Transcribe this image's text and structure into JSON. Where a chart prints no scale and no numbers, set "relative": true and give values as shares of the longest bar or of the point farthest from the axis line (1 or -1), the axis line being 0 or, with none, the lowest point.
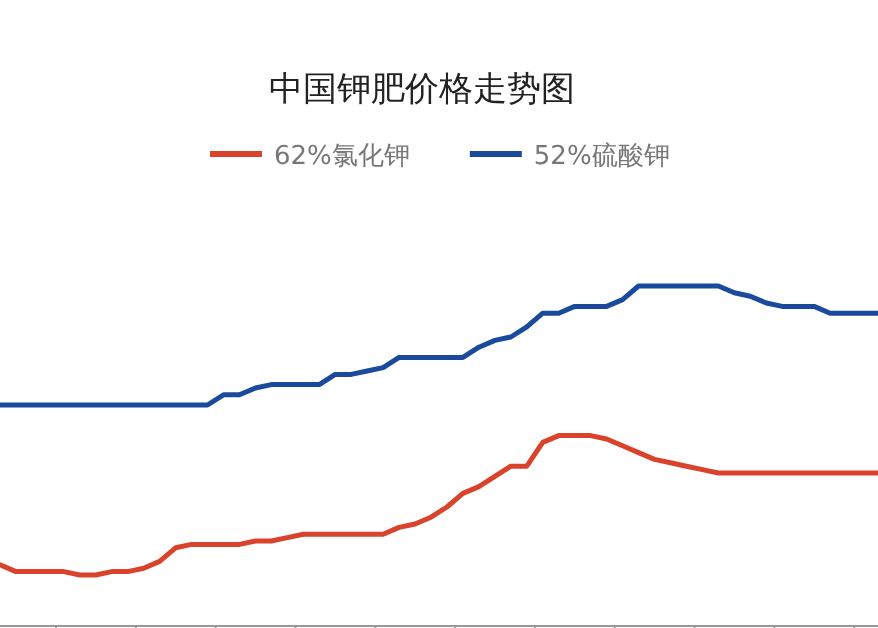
{
  "chart_data": {
    "type": "line",
    "title": "中国钾肥价格走势图",
    "relative": true,
    "legend": "top",
    "categories": [
      null,
      null,
      null,
      null,
      null,
      null,
      null,
      null,
      null,
      null,
      null,
      null,
      null,
      null,
      null,
      null,
      null,
      null,
      null,
      null,
      null,
      null,
      null,
      null,
      null,
      null,
      null,
      null,
      null,
      null,
      null,
      null,
      null,
      null,
      null,
      null,
      null,
      null,
      null,
      null,
      null,
      null,
      null,
      null,
      null,
      null,
      null,
      null,
      null,
      null,
      null,
      null,
      null,
      null,
      null,
      null
    ],
    "series": [
      {
        "name": "62%氯化钾",
        "color": "#d9432c",
        "values": [
          0.18,
          0.16,
          0.16,
          0.16,
          0.16,
          0.15,
          0.15,
          0.16,
          0.16,
          0.17,
          0.19,
          0.23,
          0.24,
          0.24,
          0.24,
          0.24,
          0.25,
          0.25,
          0.26,
          0.27,
          0.27,
          0.27,
          0.27,
          0.27,
          0.27,
          0.29,
          0.3,
          0.32,
          0.35,
          0.39,
          0.41,
          0.44,
          0.47,
          0.47,
          0.54,
          0.56,
          0.56,
          0.56,
          0.55,
          0.53,
          0.51,
          0.49,
          0.48,
          0.47,
          0.46,
          0.45,
          0.45,
          0.45,
          0.45,
          0.45,
          0.45,
          0.45,
          0.45,
          0.45,
          0.45,
          0.45
        ]
      },
      {
        "name": "52%硫酸钾",
        "color": "#1a4a9b",
        "values": [
          0.65,
          0.65,
          0.65,
          0.65,
          0.65,
          0.65,
          0.65,
          0.65,
          0.65,
          0.65,
          0.65,
          0.65,
          0.65,
          0.65,
          0.68,
          0.68,
          0.7,
          0.71,
          0.71,
          0.71,
          0.71,
          0.74,
          0.74,
          0.75,
          0.76,
          0.79,
          0.79,
          0.79,
          0.79,
          0.79,
          0.82,
          0.84,
          0.85,
          0.88,
          0.92,
          0.92,
          0.94,
          0.94,
          0.94,
          0.96,
          1,
          1,
          1,
          1,
          1,
          1,
          0.98,
          0.97,
          0.95,
          0.94,
          0.94,
          0.94,
          0.92,
          0.92,
          0.92,
          0.92
        ]
      }
    ]
  }
}
